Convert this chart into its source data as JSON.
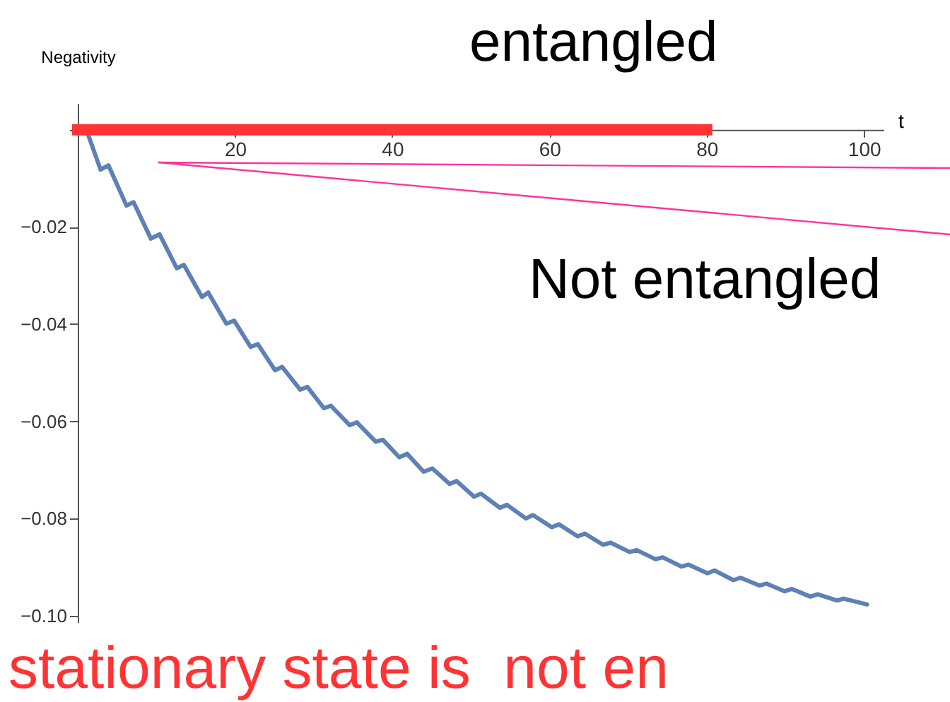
{
  "chart_data": {
    "type": "line",
    "xlabel": "t",
    "ylabel": "Negativity",
    "xlim": [
      0,
      102.5
    ],
    "ylim": [
      -0.1015,
      0.0055
    ],
    "xticks": [
      20,
      40,
      60,
      80,
      100
    ],
    "yticks": [
      {
        "value": 0,
        "label": null
      },
      {
        "value": -0.02,
        "label": "−0.02"
      },
      {
        "value": -0.04,
        "label": "−0.04"
      },
      {
        "value": -0.06,
        "label": "−0.06"
      },
      {
        "value": -0.08,
        "label": "−0.08"
      },
      {
        "value": -0.1,
        "label": "−0.10"
      }
    ],
    "grid": false,
    "marker": "none",
    "line_style": "solid",
    "series": [
      {
        "color": "#5e81b5",
        "x": [
          1.1,
          2.9,
          3.9,
          6.2,
          7.1,
          9.3,
          10.4,
          12.6,
          13.5,
          15.8,
          16.6,
          18.9,
          19.9,
          22.0,
          22.9,
          25.1,
          26.0,
          28.3,
          29.2,
          31.3,
          32.2,
          34.6,
          35.5,
          37.9,
          38.8,
          40.9,
          41.9,
          44.0,
          45.1,
          47.3,
          48.2,
          50.4,
          51.3,
          53.7,
          54.6,
          57.0,
          57.9,
          60.3,
          61.2,
          63.6,
          64.5,
          66.8,
          67.8,
          70.2,
          71.1,
          73.5,
          74.4,
          76.8,
          77.7,
          80.1,
          81.0,
          83.4,
          84.3,
          86.7,
          87.6,
          89.9,
          90.8,
          93.2,
          94.1,
          96.6,
          97.4,
          100.4
        ],
        "values": [
          0,
          -0.0082,
          -0.0073,
          -0.0156,
          -0.0149,
          -0.0224,
          -0.0215,
          -0.0285,
          -0.0278,
          -0.0344,
          -0.0335,
          -0.0399,
          -0.0393,
          -0.0447,
          -0.0441,
          -0.0495,
          -0.0488,
          -0.0535,
          -0.0529,
          -0.0573,
          -0.0568,
          -0.0608,
          -0.0602,
          -0.0642,
          -0.0638,
          -0.0674,
          -0.0667,
          -0.0704,
          -0.0697,
          -0.0729,
          -0.0723,
          -0.0755,
          -0.0749,
          -0.0778,
          -0.0772,
          -0.08,
          -0.0793,
          -0.0818,
          -0.0812,
          -0.0837,
          -0.0831,
          -0.0854,
          -0.085,
          -0.0869,
          -0.0865,
          -0.0884,
          -0.088,
          -0.0899,
          -0.0895,
          -0.0913,
          -0.0907,
          -0.0927,
          -0.0922,
          -0.0938,
          -0.0934,
          -0.095,
          -0.0945,
          -0.0961,
          -0.0956,
          -0.0969,
          -0.0965,
          -0.0977
        ]
      },
      {
        "color": "#ff3333",
        "x": [
          0,
          80
        ],
        "values": [
          0,
          0
        ]
      }
    ],
    "annotations": [
      "entangled",
      "Not entangled",
      "stationary state is  not en"
    ]
  }
}
